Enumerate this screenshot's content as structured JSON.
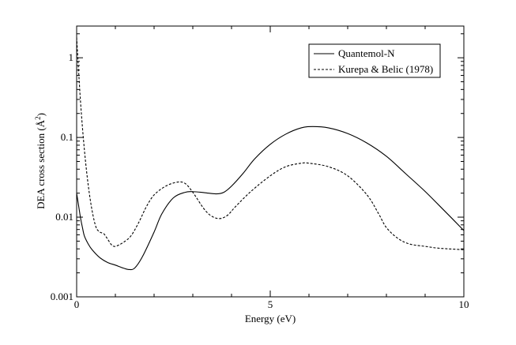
{
  "chart_data": {
    "type": "line",
    "title": "",
    "xlabel": "Energy (eV)",
    "ylabel_main": "DEA cross section (",
    "ylabel_unit": "Å",
    "ylabel_exp": "2",
    "ylabel_close": ")",
    "xlim": [
      0,
      10
    ],
    "ylim": [
      0.001,
      2.5
    ],
    "yscale": "log",
    "grid": false,
    "legend_position": "top-right",
    "x_ticks": [
      {
        "value": 0,
        "label": "0"
      },
      {
        "value": 5,
        "label": "5"
      },
      {
        "value": 10,
        "label": "10"
      }
    ],
    "x_minor_ticks": [
      1,
      2,
      3,
      4,
      6,
      7,
      8,
      9
    ],
    "y_ticks": [
      {
        "value": 0.001,
        "label": "0.001"
      },
      {
        "value": 0.01,
        "label": "0.01"
      },
      {
        "value": 0.1,
        "label": "0.1"
      },
      {
        "value": 1,
        "label": "1"
      }
    ],
    "series": [
      {
        "name": "Quantemol-N",
        "style": "solid",
        "color": "#000000",
        "x": [
          0.0,
          0.05,
          0.1,
          0.15,
          0.2,
          0.3,
          0.4,
          0.6,
          0.8,
          1.0,
          1.2,
          1.35,
          1.5,
          1.7,
          2.0,
          2.2,
          2.5,
          2.8,
          3.0,
          3.3,
          3.6,
          3.8,
          4.0,
          4.3,
          4.6,
          5.0,
          5.4,
          5.8,
          6.1,
          6.5,
          7.0,
          7.5,
          8.0,
          8.5,
          9.0,
          9.5,
          10.0
        ],
        "y": [
          0.02,
          0.014,
          0.0098,
          0.0074,
          0.0058,
          0.0046,
          0.0039,
          0.0031,
          0.0027,
          0.0025,
          0.0023,
          0.0022,
          0.0023,
          0.0032,
          0.0065,
          0.011,
          0.0175,
          0.0205,
          0.0209,
          0.0203,
          0.0196,
          0.0205,
          0.0245,
          0.0355,
          0.054,
          0.082,
          0.11,
          0.132,
          0.137,
          0.132,
          0.112,
          0.085,
          0.058,
          0.035,
          0.021,
          0.012,
          0.0068
        ]
      },
      {
        "name": "Kurepa & Belic (1978)",
        "style": "dashed",
        "color": "#000000",
        "x": [
          0.0,
          0.1,
          0.2,
          0.3,
          0.4,
          0.5,
          0.6,
          0.7,
          0.8,
          0.9,
          1.0,
          1.2,
          1.4,
          1.6,
          1.8,
          2.0,
          2.3,
          2.6,
          2.8,
          3.0,
          3.3,
          3.5,
          3.7,
          3.9,
          4.1,
          4.5,
          5.0,
          5.4,
          5.8,
          6.0,
          6.5,
          7.0,
          7.5,
          7.8,
          8.0,
          8.3,
          8.6,
          9.0,
          9.3,
          9.6,
          10.0
        ],
        "y": [
          1.8,
          0.28,
          0.07,
          0.025,
          0.012,
          0.0075,
          0.0065,
          0.0062,
          0.0053,
          0.0045,
          0.0043,
          0.0048,
          0.0058,
          0.0085,
          0.0135,
          0.019,
          0.0245,
          0.0275,
          0.0265,
          0.0205,
          0.0125,
          0.0102,
          0.0096,
          0.0106,
          0.0135,
          0.021,
          0.033,
          0.043,
          0.0475,
          0.0475,
          0.043,
          0.033,
          0.019,
          0.011,
          0.0074,
          0.0054,
          0.0046,
          0.0043,
          0.0041,
          0.004,
          0.0039
        ]
      }
    ]
  }
}
